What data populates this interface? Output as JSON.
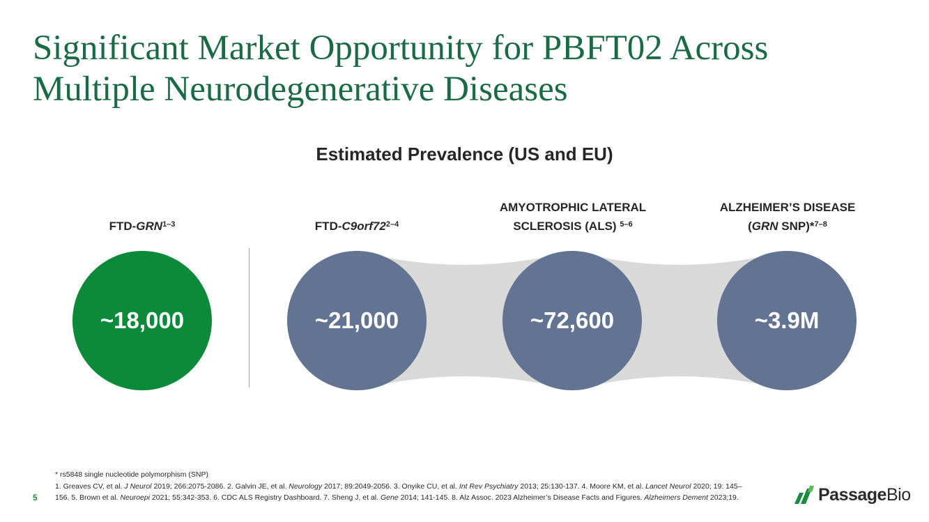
{
  "slide": {
    "title_line1": "Significant Market Opportunity for PBFT02 Across",
    "title_line2": "Multiple Neurodegenerative Diseases",
    "subtitle": "Estimated Prevalence (US and EU)",
    "page_number": "5"
  },
  "diseases": [
    {
      "label_prefix": "FTD-",
      "label_italic": "GRN",
      "label_sup": "1–3",
      "value": "~18,000",
      "color": "#0b8a3a"
    },
    {
      "label_prefix": "FTD-",
      "label_italic": "C9orf72",
      "label_sup": "2–4",
      "value": "~21,000",
      "color": "#627491"
    },
    {
      "label_line1": "AMYOTROPHIC LATERAL",
      "label_line2": "SCLEROSIS (ALS) ",
      "label_sup": "5–6",
      "value": "~72,600",
      "color": "#627491"
    },
    {
      "label_line1": "ALZHEIMER’S DISEASE",
      "label_open": "(",
      "label_italic": "GRN",
      "label_rest": " SNP)*",
      "label_sup": "7–8",
      "value": "~3.9M",
      "color": "#627491"
    }
  ],
  "footnotes": {
    "snp_note": "* rs5848 single nucleotide polymorphism (SNP)",
    "refs": [
      {
        "t": "1. Greaves CV, et al. "
      },
      {
        "i": "J Neurol"
      },
      {
        "t": " 2019; 266:2075-2086. 2. Galvin JE, et al. "
      },
      {
        "i": "Neurology"
      },
      {
        "t": " 2017; 89:2049-2056. 3. Onyike CU, et al. "
      },
      {
        "i": "Int Rev Psychiatry"
      },
      {
        "t": " 2013; 25:130-137. 4. Moore KM, et al. "
      },
      {
        "i": "Lancet Neurol"
      },
      {
        "t": " 2020; 19: 145–156. 5. Brown et al. "
      },
      {
        "i": "Neuroepi"
      },
      {
        "t": " 2021; 55:342-353. 6. CDC ALS Registry Dashboard. 7. Sheng J, et al. "
      },
      {
        "i": "Gene"
      },
      {
        "t": " 2014; 141-145. 8. Alz Assoc. 2023 Alzheimer’s Disease Facts and Figures. "
      },
      {
        "i": "Alzheimers Dement"
      },
      {
        "t": " 2023;19."
      }
    ]
  },
  "logo": {
    "word_bold": "Passage",
    "word_regular": "Bio"
  },
  "colors": {
    "title": "#1a6b45",
    "connector": "#d9d9d9",
    "logo_green": "#1a8a3e"
  }
}
